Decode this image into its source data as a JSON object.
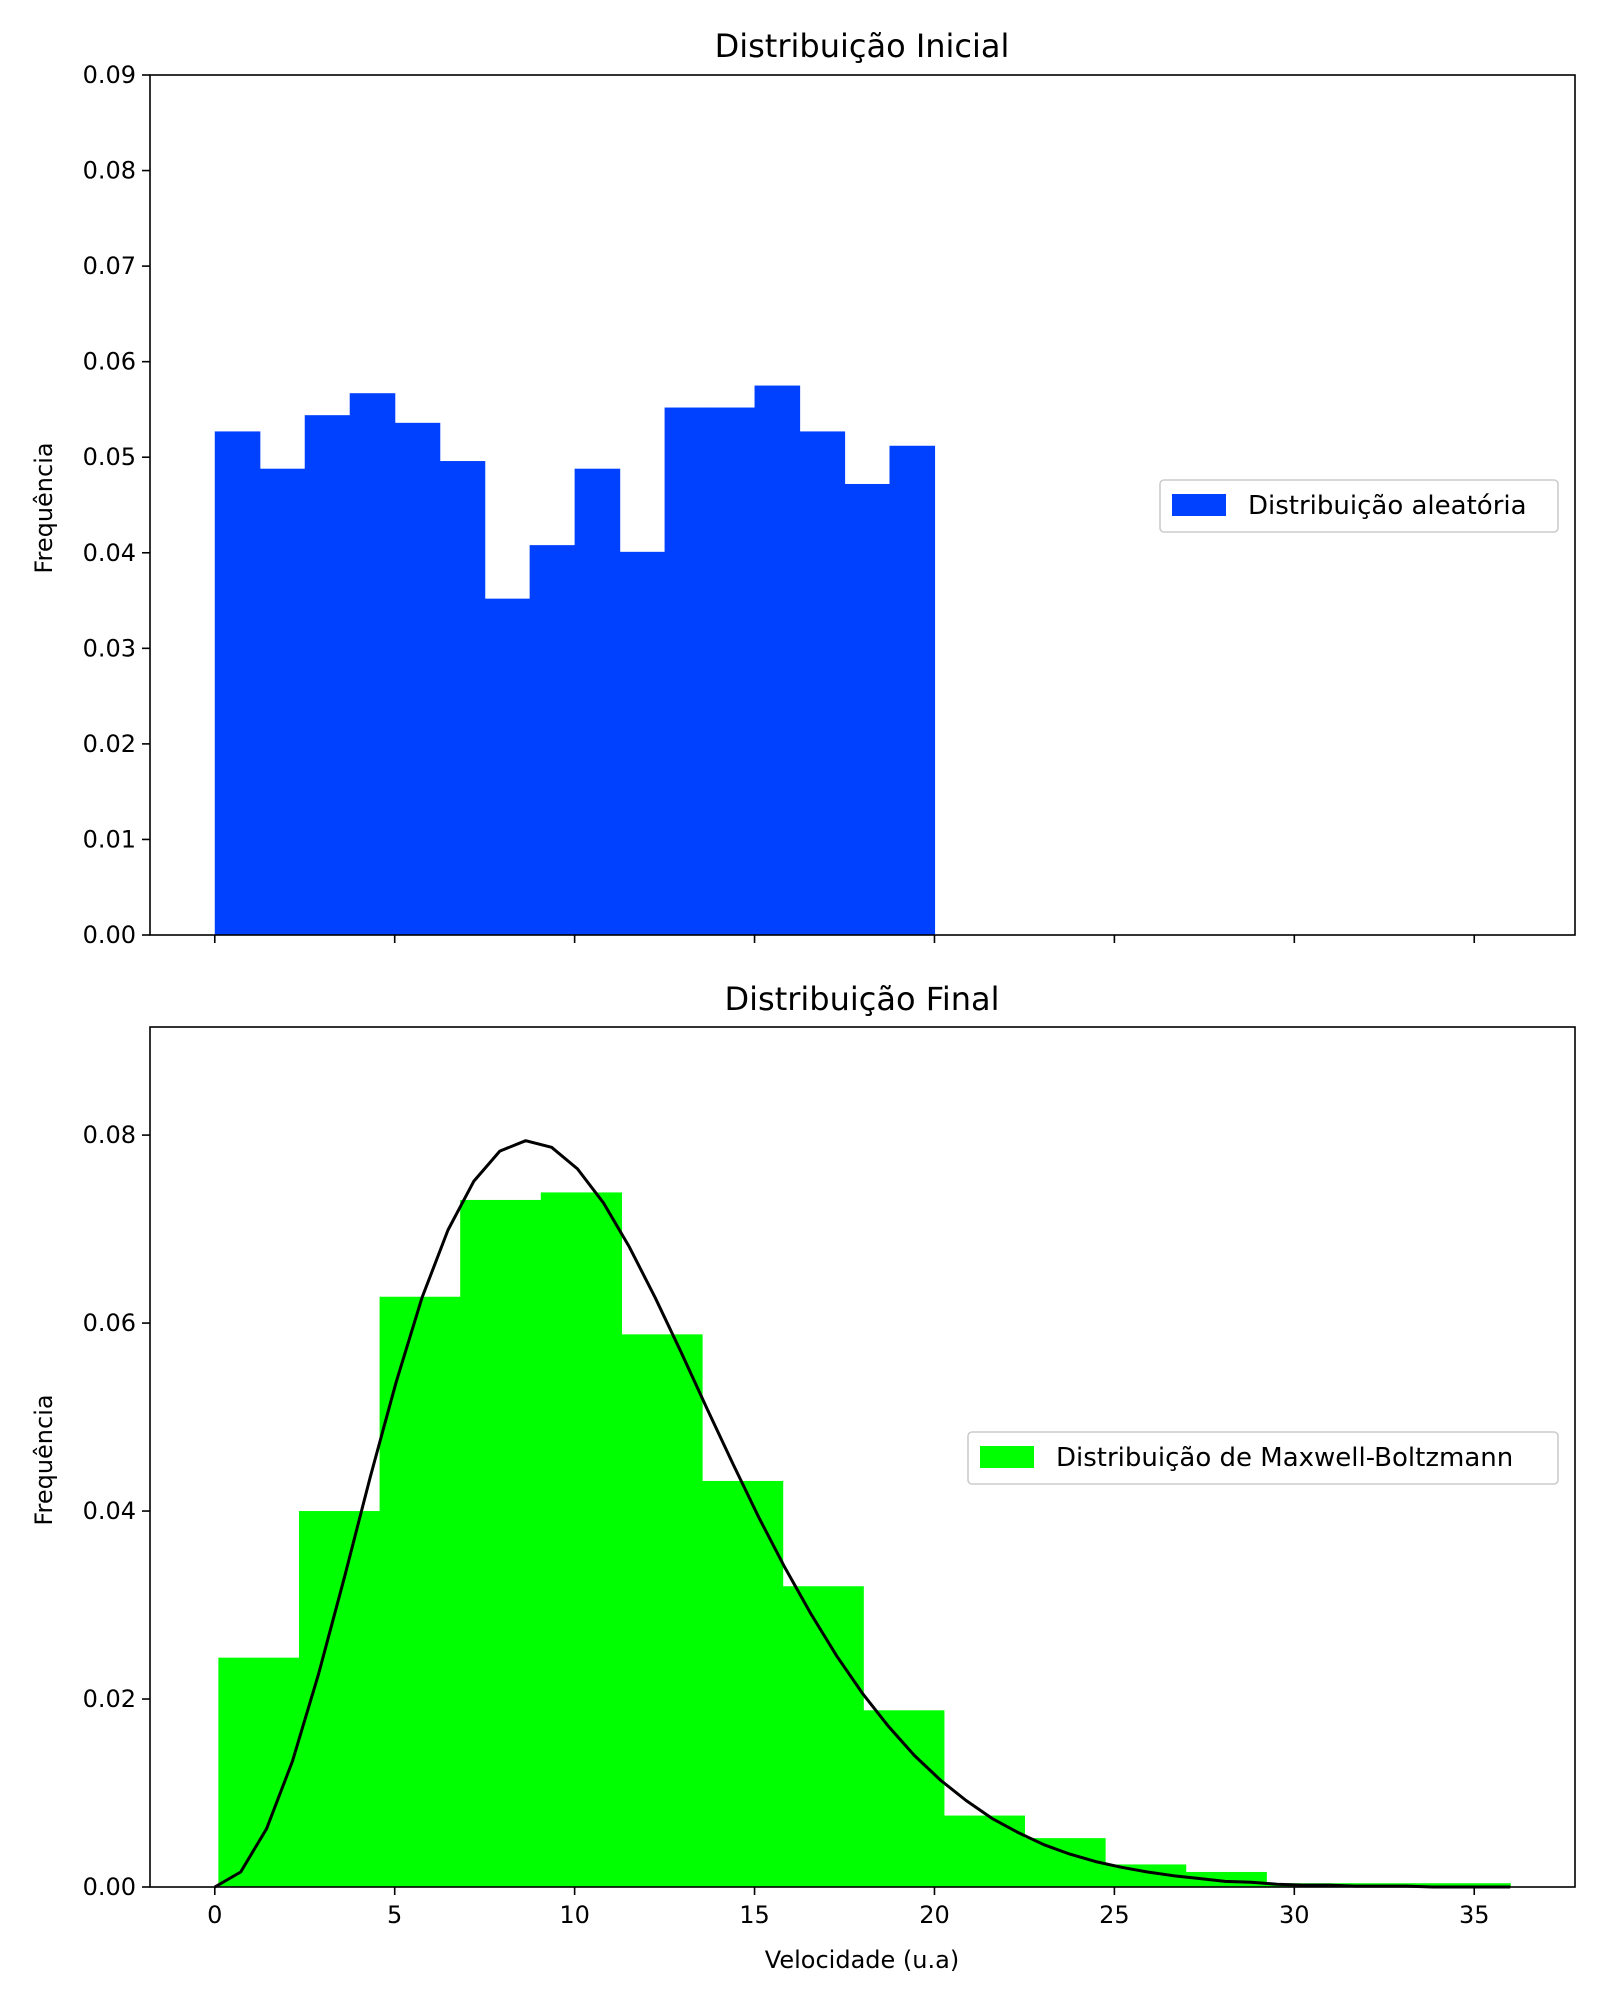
{
  "chart_data": [
    {
      "type": "bar",
      "title": "Distribuição Inicial",
      "xlabel": "",
      "ylabel": "Frequência",
      "xlim": [
        -1.8,
        37.8
      ],
      "ylim": [
        0,
        0.09
      ],
      "yticks": [
        0.0,
        0.01,
        0.02,
        0.03,
        0.04,
        0.05,
        0.06,
        0.07,
        0.08,
        0.09
      ],
      "ytick_labels": [
        "0.00",
        "0.01",
        "0.02",
        "0.03",
        "0.04",
        "0.05",
        "0.06",
        "0.07",
        "0.08",
        "0.09"
      ],
      "xticks": [
        0,
        5,
        10,
        15,
        20,
        25,
        30,
        35
      ],
      "show_xtick_labels": false,
      "grid": false,
      "legend_position": "right-center",
      "series": [
        {
          "name": "Distribuição aleatória",
          "color": "#0040ff",
          "bin_edges": [
            0,
            1.25,
            2.5,
            3.75,
            5,
            6.25,
            7.5,
            8.75,
            10,
            11.25,
            12.5,
            13.75,
            15,
            16.25,
            17.5,
            18.75,
            20
          ],
          "values": [
            0.0527,
            0.0488,
            0.0544,
            0.0567,
            0.0536,
            0.0496,
            0.0352,
            0.0408,
            0.0488,
            0.0401,
            0.0552,
            0.0552,
            0.0575,
            0.0527,
            0.0472,
            0.0512
          ]
        }
      ]
    },
    {
      "type": "bar",
      "title": "Distribuição Final",
      "xlabel": "Velocidade (u.a)",
      "ylabel": "Frequência",
      "xlim": [
        -1.8,
        37.8
      ],
      "ylim": [
        0,
        0.0915
      ],
      "yticks": [
        0.0,
        0.02,
        0.04,
        0.06,
        0.08
      ],
      "ytick_labels": [
        "0.00",
        "0.02",
        "0.04",
        "0.06",
        "0.08"
      ],
      "xticks": [
        0,
        5,
        10,
        15,
        20,
        25,
        30,
        35
      ],
      "xtick_labels": [
        "0",
        "5",
        "10",
        "15",
        "20",
        "25",
        "30",
        "35"
      ],
      "show_xtick_labels": true,
      "grid": false,
      "legend_position": "right-center",
      "series": [
        {
          "name": "Distribuição de Maxwell-Boltzmann",
          "color": "#00ff00",
          "bin_edges": [
            0.1,
            2.34,
            4.58,
            6.82,
            9.06,
            11.3,
            13.54,
            15.78,
            18.02,
            20.26,
            22.5,
            24.74,
            26.98,
            29.22,
            31.46,
            33.7,
            36
          ],
          "values": [
            0.0244,
            0.04,
            0.0628,
            0.0731,
            0.0739,
            0.0588,
            0.0432,
            0.032,
            0.0188,
            0.0076,
            0.0052,
            0.0024,
            0.0016,
            0.0004,
            0.0004,
            0.0004
          ]
        }
      ],
      "curve": {
        "color": "#000000",
        "x": [
          0,
          0.72,
          1.44,
          2.16,
          2.88,
          3.6,
          4.32,
          5.04,
          5.76,
          6.48,
          7.2,
          7.92,
          8.64,
          9.36,
          10.08,
          10.8,
          11.52,
          12.24,
          12.96,
          13.68,
          14.4,
          15.12,
          15.84,
          16.56,
          17.28,
          18.0,
          18.72,
          19.44,
          20.16,
          20.88,
          21.6,
          22.32,
          23.04,
          23.76,
          24.48,
          25.2,
          25.92,
          26.64,
          27.36,
          28.08,
          28.8,
          29.52,
          30.24,
          30.96,
          31.68,
          32.4,
          33.12,
          33.84,
          34.56,
          35.28,
          36.0
        ],
        "y": [
          0.0,
          0.0016,
          0.0062,
          0.0134,
          0.0226,
          0.0329,
          0.0436,
          0.0537,
          0.0627,
          0.0699,
          0.0751,
          0.0783,
          0.0794,
          0.0787,
          0.0764,
          0.0728,
          0.0681,
          0.0627,
          0.0569,
          0.0509,
          0.045,
          0.0393,
          0.034,
          0.0291,
          0.0246,
          0.0206,
          0.0171,
          0.014,
          0.0114,
          0.0092,
          0.0073,
          0.0058,
          0.0045,
          0.0035,
          0.0027,
          0.0021,
          0.0016,
          0.0012,
          0.0009,
          0.0006,
          0.0005,
          0.0003,
          0.0002,
          0.0002,
          0.0001,
          0.0001,
          0.0001,
          0.0,
          0.0,
          0.0,
          0.0
        ]
      }
    }
  ]
}
